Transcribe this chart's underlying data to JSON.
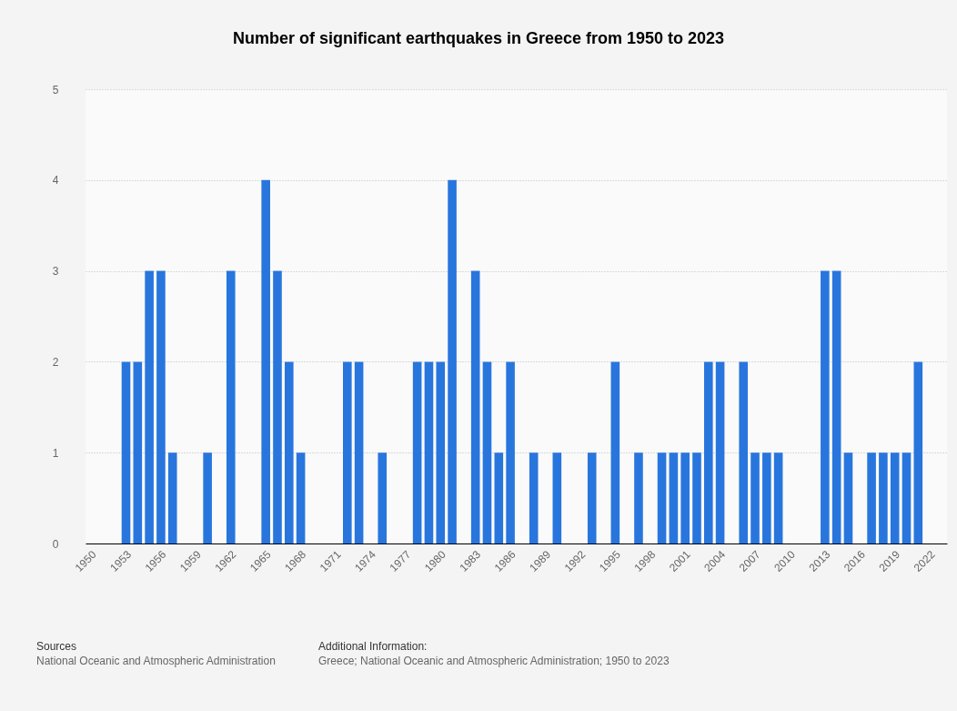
{
  "chart_data": {
    "type": "bar",
    "title": "Number of significant earthquakes in Greece from 1950 to 2023",
    "categories": [
      "1950",
      null,
      null,
      "1953",
      null,
      null,
      "1956",
      null,
      null,
      "1959",
      null,
      null,
      "1962",
      null,
      null,
      "1965",
      null,
      null,
      "1968",
      null,
      null,
      "1971",
      null,
      null,
      "1974",
      null,
      null,
      "1977",
      null,
      null,
      "1980",
      null,
      null,
      "1983",
      null,
      null,
      "1986",
      null,
      null,
      "1989",
      null,
      null,
      "1992",
      null,
      null,
      "1995",
      null,
      null,
      "1998",
      null,
      null,
      "2001",
      null,
      null,
      "2004",
      null,
      null,
      "2007",
      null,
      null,
      "2010",
      null,
      null,
      "2013",
      null,
      null,
      "2016",
      null,
      null,
      "2019",
      null,
      null,
      "2022",
      null
    ],
    "values": [
      0,
      0,
      0,
      2,
      2,
      3,
      3,
      1,
      0,
      0,
      1,
      0,
      3,
      0,
      0,
      4,
      3,
      2,
      1,
      0,
      0,
      0,
      2,
      2,
      0,
      1,
      0,
      0,
      2,
      2,
      2,
      4,
      0,
      3,
      2,
      1,
      2,
      0,
      1,
      0,
      1,
      0,
      0,
      1,
      0,
      2,
      0,
      1,
      0,
      1,
      1,
      1,
      1,
      2,
      2,
      0,
      2,
      1,
      1,
      1,
      0,
      0,
      0,
      3,
      3,
      1,
      0,
      1,
      1,
      1,
      1,
      2,
      0,
      0
    ],
    "color": "#2876dd",
    "ylim": [
      0,
      5
    ],
    "yticks": [
      0,
      1,
      2,
      3,
      4,
      5
    ],
    "grid": "y",
    "annotations": [
      "Sources",
      "National Oceanic and Atmospheric Administration",
      "Additional Information:",
      "Greece; National Oceanic and Atmospheric Administration; 1950 to 2023"
    ]
  }
}
